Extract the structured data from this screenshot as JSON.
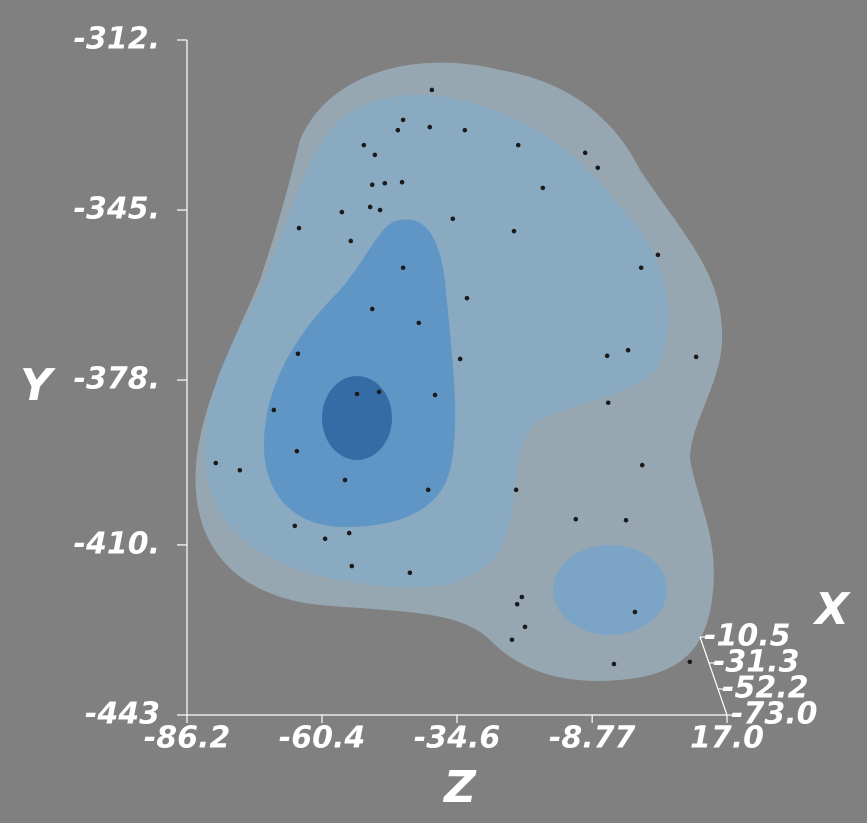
{
  "chart_data": {
    "type": "scatter",
    "xlabel": "Z",
    "ylabel": "Y",
    "depthlabel": "X",
    "zlim": [
      -86.2,
      17.0
    ],
    "zticks": [
      -86.2,
      -60.4,
      -34.6,
      -8.77,
      {
        "value": 17.0,
        "label": "17.0"
      }
    ],
    "ylim": [
      -312,
      -443
    ],
    "yticks": [
      {
        "value": -312,
        "label": "-312."
      },
      {
        "value": -345,
        "label": "-345."
      },
      {
        "value": -378,
        "label": "-378."
      },
      {
        "value": -410,
        "label": "-410."
      },
      -443
    ],
    "xlim": [
      -10.5,
      -73.0
    ],
    "xticks": [
      -10.5,
      -31.3,
      -52.2,
      {
        "value": -73.0,
        "label": "-73.0"
      }
    ],
    "color": "#1a1a1a",
    "z": [
      -39.4,
      -44.9,
      -39.8,
      -33.1,
      -45.9,
      -52.4,
      -50.3,
      -22.9,
      -10.1,
      -7.7,
      -45.1,
      -48.4,
      -50.8,
      -18.2,
      -56.6,
      -51.2,
      -49.3,
      -35.4,
      -64.8,
      -54.9,
      -23.7,
      3.8,
      -44.9,
      0.6,
      -32.7,
      -50.8,
      -41.9,
      -65.0,
      -5.9,
      -34.0,
      11.1,
      -1.9,
      -53.7,
      -49.5,
      -69.6,
      -38.8,
      -5.7,
      -65.2,
      -80.7,
      -76.1,
      -56.0,
      -40.1,
      -23.3,
      -65.6,
      -55.2,
      -59.8,
      -11.9,
      -54.7,
      -43.6,
      -23.1,
      -22.2,
      -21.6,
      -4.6,
      -24.1,
      9.9,
      -0.6,
      -2.3,
      0.8
    ],
    "y": [
      -321.7,
      -327.5,
      -328.9,
      -329.5,
      -329.5,
      -332.4,
      -334.3,
      -332.4,
      -333.9,
      -336.8,
      -339.6,
      -339.8,
      -340.1,
      -340.7,
      -345.4,
      -344.4,
      -345.0,
      -346.7,
      -348.5,
      -351.0,
      -349.1,
      -353.7,
      -356.2,
      -356.2,
      -362.1,
      -364.2,
      -366.9,
      -372.9,
      -373.3,
      -373.9,
      -373.5,
      -372.2,
      -380.7,
      -380.3,
      -383.8,
      -380.9,
      -382.4,
      -391.8,
      -394.1,
      -395.5,
      -397.4,
      -399.3,
      -399.3,
      -406.3,
      -407.7,
      -408.8,
      -405.0,
      -414.1,
      -415.4,
      -421.5,
      -420.1,
      -425.9,
      -433.1,
      -428.4,
      -432.7,
      -423.0,
      -405.2,
      -394.5
    ]
  }
}
